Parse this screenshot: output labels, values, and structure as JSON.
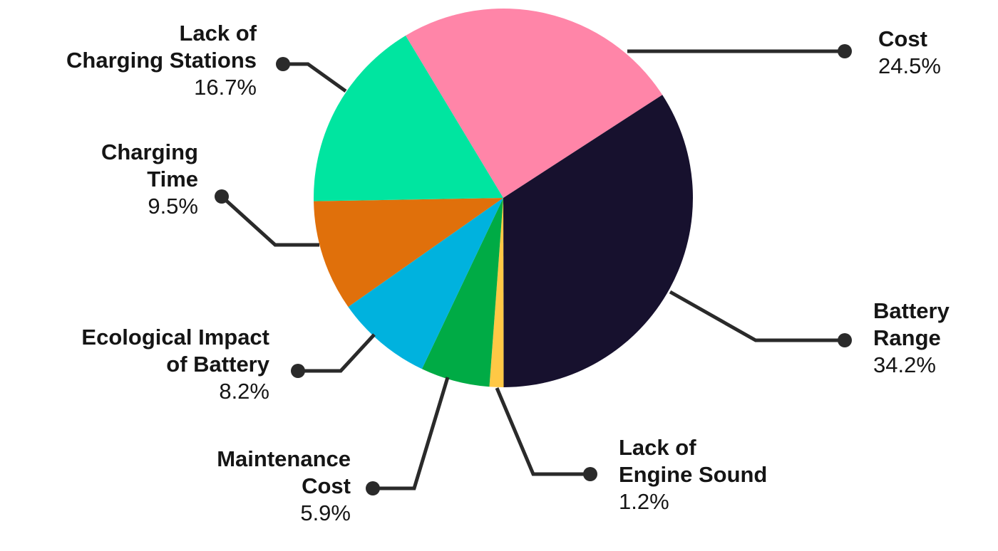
{
  "chart_data": {
    "type": "pie",
    "categories": [
      "Cost",
      "Battery\nRange",
      "Lack of\nEngine Sound",
      "Maintenance\nCost",
      "Ecological Impact\nof Battery",
      "Charging\nTime",
      "Lack of\nCharging Stations"
    ],
    "values": [
      24.5,
      34.2,
      1.2,
      5.9,
      8.2,
      9.5,
      16.7
    ],
    "value_labels": [
      "24.5%",
      "34.2%",
      "1.2%",
      "5.9%",
      "8.2%",
      "9.5%",
      "16.7%"
    ],
    "colors": [
      "#ff85a8",
      "#17112e",
      "#ffc845",
      "#00ab45",
      "#00b2de",
      "#e0700b",
      "#00e5a0"
    ]
  }
}
